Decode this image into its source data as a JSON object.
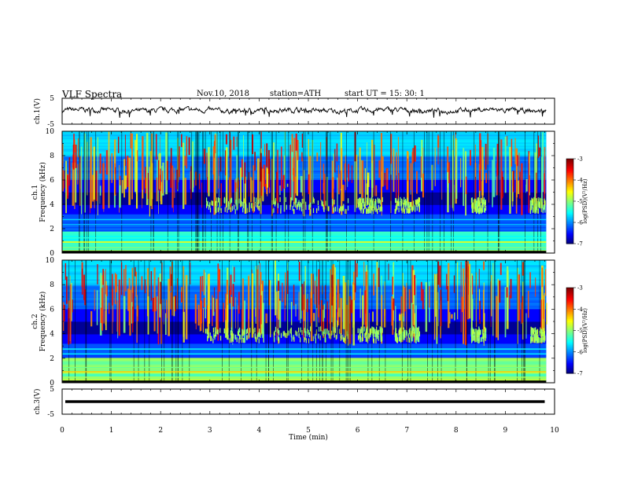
{
  "header": {
    "title": "VLF  Spectra",
    "date": "Nov.10, 2018",
    "station": "station=ATH",
    "start": "start  UT  =    15: 30: 1"
  },
  "chart_data": [
    {
      "type": "line",
      "panel": "ch1-waveform",
      "ylabel": "ch.1(V)",
      "ylim": [
        -5,
        5
      ],
      "yticks": [
        "5",
        "-5"
      ],
      "x_range_min": [
        0,
        9.83
      ],
      "description_values": {
        "level_V": 0.3,
        "jitter_V": 1.5
      },
      "color": "#000000"
    },
    {
      "type": "heatmap",
      "panel": "ch1-spectrogram",
      "ylabel": "ch.1 Frequency  (kHz)",
      "ylim": [
        0,
        10
      ],
      "yticks": [
        "0",
        "2",
        "4",
        "6",
        "8",
        "10"
      ],
      "colorbar": {
        "label": "log(PSD)(V²/Hz)",
        "ticks": [
          "-3",
          "-4",
          "-5",
          "-6",
          "-7"
        ],
        "range": [
          -7,
          -3
        ]
      },
      "chorus_band_kHz": [
        3.2,
        4.2
      ],
      "dark_band_kHz": [
        4.0,
        5.0
      ],
      "hiss_band_kHz": [
        0.3,
        1.8
      ]
    },
    {
      "type": "heatmap",
      "panel": "ch2-spectrogram",
      "ylabel": "ch.2 Frequency  (kHz)",
      "ylim": [
        0,
        10
      ],
      "yticks": [
        "0",
        "2",
        "4",
        "6",
        "8",
        "10"
      ],
      "colorbar": {
        "label": "log(PSD)(V²/Hz)",
        "ticks": [
          "-3",
          "-4",
          "-5",
          "-6",
          "-7"
        ],
        "range": [
          -7,
          -3
        ]
      },
      "chorus_band_kHz": [
        3.2,
        4.2
      ],
      "dark_band_kHz": [
        4.0,
        5.0
      ],
      "hiss_band_kHz": [
        0.3,
        2.0
      ]
    },
    {
      "type": "line",
      "panel": "ch3-waveform",
      "ylabel": "ch.3(V)",
      "ylim": [
        -5,
        5
      ],
      "yticks": [
        "5",
        "-5"
      ],
      "level_V": 0.0,
      "color": "#000000"
    }
  ],
  "xaxis": {
    "label": "Time  (min)",
    "range": [
      0,
      10
    ],
    "ticks": [
      "0",
      "1",
      "2",
      "3",
      "4",
      "5",
      "6",
      "7",
      "8",
      "9",
      "10"
    ]
  },
  "colors": {
    "frame": "#000000",
    "background": "#ffffff"
  }
}
